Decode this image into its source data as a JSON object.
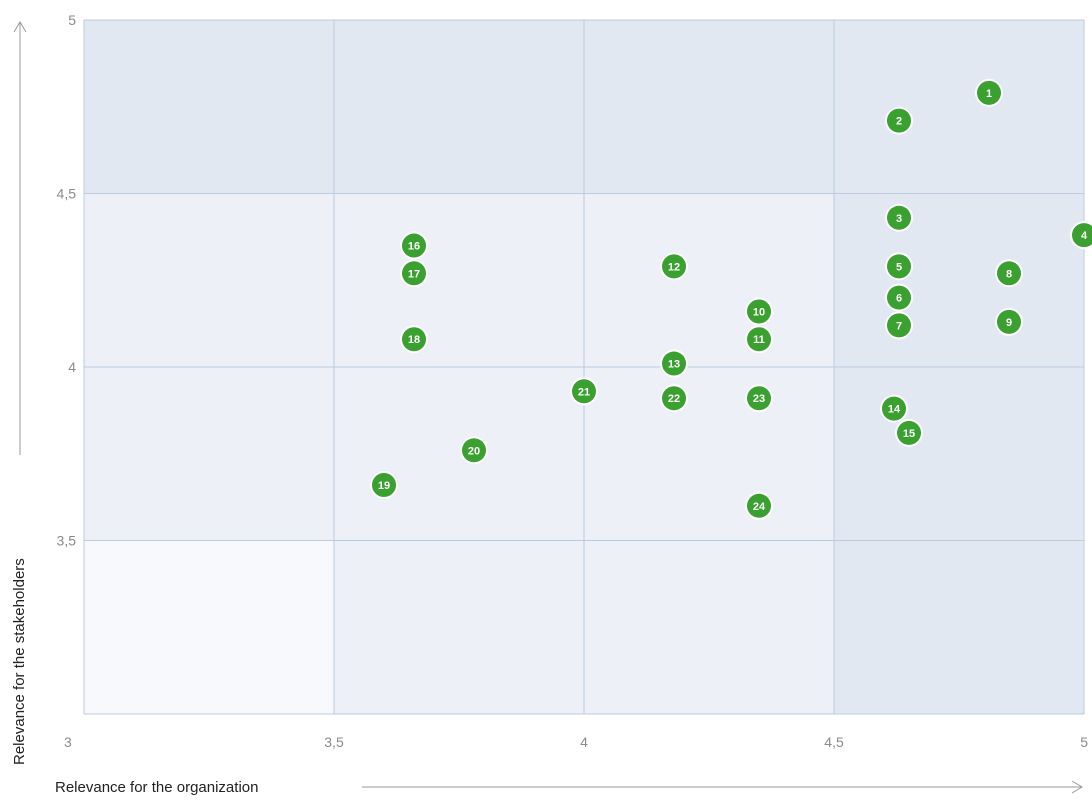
{
  "chart_data": {
    "type": "scatter",
    "xlabel": "Relevance for the organization",
    "ylabel": "Relevance for the stakeholders",
    "xlim": [
      3,
      5
    ],
    "ylim": [
      3,
      5
    ],
    "x_ticks": [
      "3",
      "3,5",
      "4",
      "4,5",
      "5"
    ],
    "y_ticks": [
      "3,5",
      "4",
      "4,5",
      "5"
    ],
    "grid": true,
    "point_color": "#3aa02f",
    "zone_colors": [
      "#f7f9fc",
      "#edf1f7",
      "#e1e8f2"
    ],
    "grid_color": "#bccbdd",
    "points": [
      {
        "label": "1",
        "x": 4.81,
        "y": 4.79
      },
      {
        "label": "2",
        "x": 4.63,
        "y": 4.71
      },
      {
        "label": "3",
        "x": 4.63,
        "y": 4.43
      },
      {
        "label": "4",
        "x": 5.0,
        "y": 4.38
      },
      {
        "label": "5",
        "x": 4.63,
        "y": 4.29
      },
      {
        "label": "6",
        "x": 4.63,
        "y": 4.2
      },
      {
        "label": "7",
        "x": 4.63,
        "y": 4.12
      },
      {
        "label": "8",
        "x": 4.85,
        "y": 4.27
      },
      {
        "label": "9",
        "x": 4.85,
        "y": 4.13
      },
      {
        "label": "10",
        "x": 4.35,
        "y": 4.16
      },
      {
        "label": "11",
        "x": 4.35,
        "y": 4.08
      },
      {
        "label": "12",
        "x": 4.18,
        "y": 4.29
      },
      {
        "label": "13",
        "x": 4.18,
        "y": 4.01
      },
      {
        "label": "14",
        "x": 4.62,
        "y": 3.88
      },
      {
        "label": "15",
        "x": 4.65,
        "y": 3.81
      },
      {
        "label": "16",
        "x": 3.66,
        "y": 4.35
      },
      {
        "label": "17",
        "x": 3.66,
        "y": 4.27
      },
      {
        "label": "18",
        "x": 3.66,
        "y": 4.08
      },
      {
        "label": "19",
        "x": 3.6,
        "y": 3.66
      },
      {
        "label": "20",
        "x": 3.78,
        "y": 3.76
      },
      {
        "label": "21",
        "x": 4.0,
        "y": 3.93
      },
      {
        "label": "22",
        "x": 4.18,
        "y": 3.91
      },
      {
        "label": "23",
        "x": 4.35,
        "y": 3.91
      },
      {
        "label": "24",
        "x": 4.35,
        "y": 3.6
      }
    ]
  }
}
